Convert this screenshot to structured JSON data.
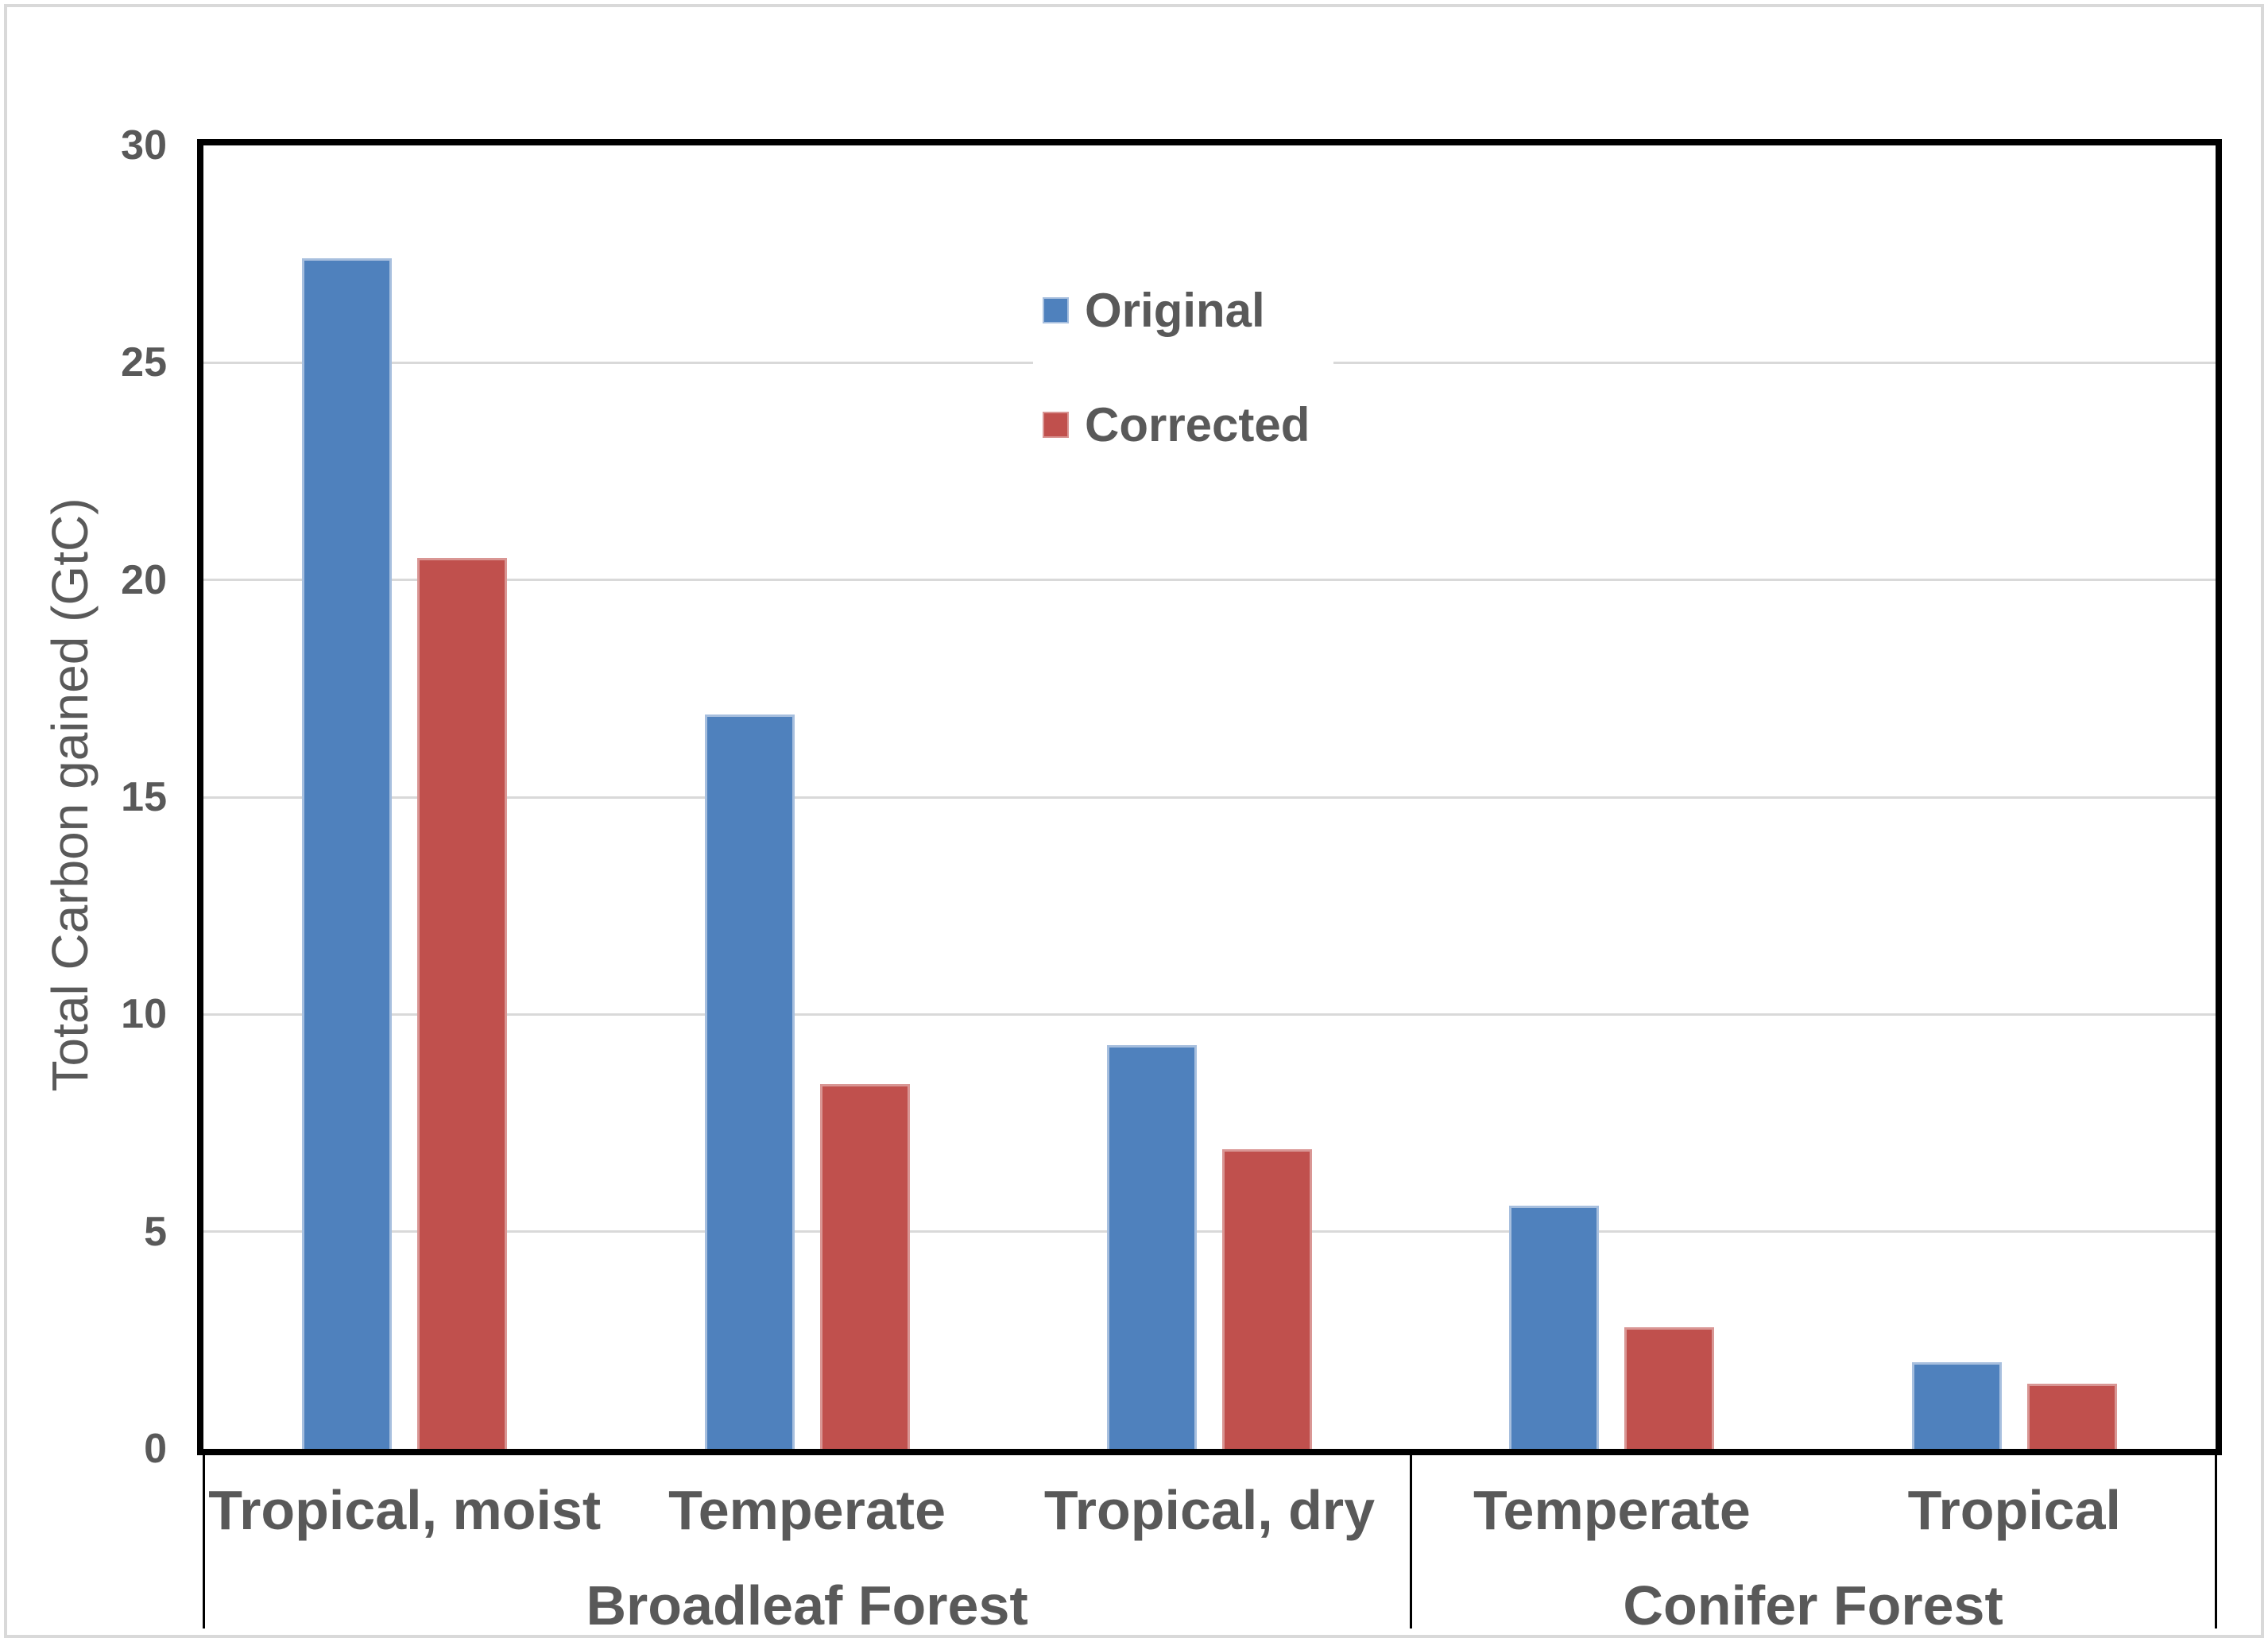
{
  "chart_data": {
    "type": "bar",
    "title": "",
    "ylabel": "Total Carbon gained (GtC)",
    "xlabel": "",
    "ylim": [
      0,
      30
    ],
    "yticks": [
      0,
      5,
      10,
      15,
      20,
      25,
      30
    ],
    "grid": true,
    "legend_position": "inside-top-center",
    "categories": [
      "Tropical, moist",
      "Temperate",
      "Tropical, dry",
      "Temperate",
      "Tropical"
    ],
    "groups": [
      {
        "label": "Broadleaf Forest",
        "span": 3
      },
      {
        "label": "Conifer Forest",
        "span": 2
      }
    ],
    "series": [
      {
        "name": "Original",
        "color": "#4F81BD",
        "values": [
          27.4,
          16.9,
          9.3,
          5.6,
          2.0
        ]
      },
      {
        "name": "Corrected",
        "color": "#C0504D",
        "values": [
          20.5,
          8.4,
          6.9,
          2.8,
          1.5
        ]
      }
    ],
    "colors": {
      "grid": "#d9d9d9",
      "axis": "#000000",
      "text": "#595959",
      "background": "#ffffff"
    }
  }
}
